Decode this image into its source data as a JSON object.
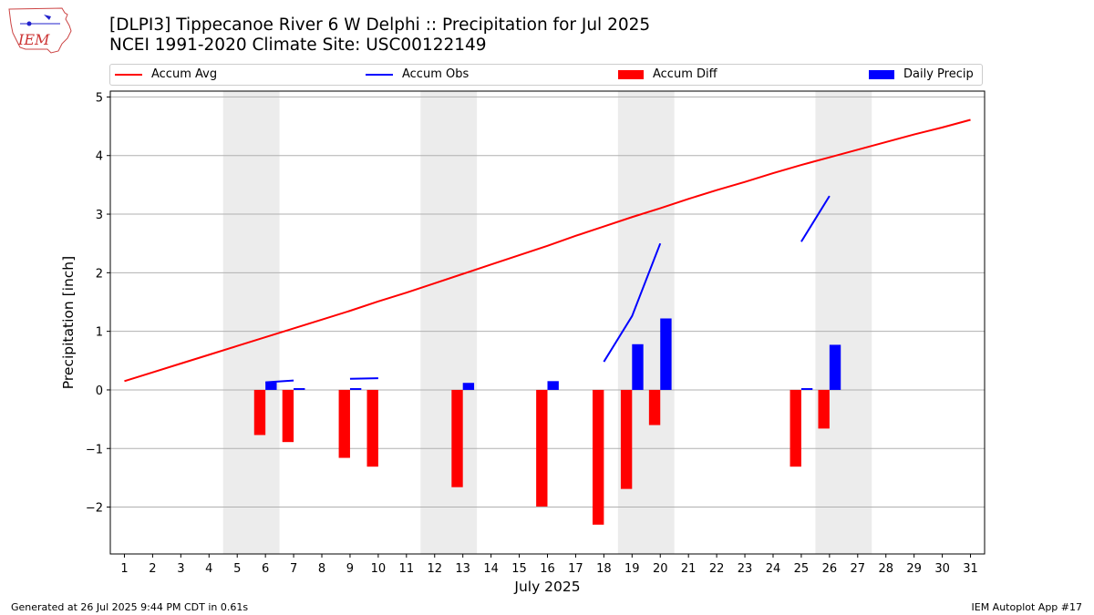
{
  "header": {
    "title_line1": "[DLPI3] Tippecanoe River 6 W Delphi :: Precipitation for Jul 2025",
    "title_line2": "NCEI 1991-2020 Climate Site: USC00122149"
  },
  "logo": {
    "text": "IEM"
  },
  "legend": [
    {
      "label": "Accum Avg",
      "kind": "line",
      "color": "#ff0000"
    },
    {
      "label": "Accum Obs",
      "kind": "line",
      "color": "#0000ff"
    },
    {
      "label": "Accum Diff",
      "kind": "box",
      "color": "#ff0000"
    },
    {
      "label": "Daily Precip",
      "kind": "box",
      "color": "#0000ff"
    }
  ],
  "footer": {
    "left": "Generated at 26 Jul 2025 9:44 PM CDT in 0.61s",
    "right": "IEM Autoplot App #17"
  },
  "chart_data": {
    "type": "bar",
    "title": "[DLPI3] Tippecanoe River 6 W Delphi :: Precipitation for Jul 2025",
    "xlabel": "July 2025",
    "ylabel": "Precipitation [inch]",
    "xlim": [
      0.5,
      31.5
    ],
    "ylim": [
      -2.8,
      5.1
    ],
    "x_ticks": [
      1,
      2,
      3,
      4,
      5,
      6,
      7,
      8,
      9,
      10,
      11,
      12,
      13,
      14,
      15,
      16,
      17,
      18,
      19,
      20,
      21,
      22,
      23,
      24,
      25,
      26,
      27,
      28,
      29,
      30,
      31
    ],
    "y_ticks": [
      -2,
      -1,
      0,
      1,
      2,
      3,
      4,
      5
    ],
    "grid": "horizontal",
    "legend_placement": "top",
    "weekend_shading": [
      [
        4.5,
        6.5
      ],
      [
        11.5,
        13.5
      ],
      [
        18.5,
        20.5
      ],
      [
        25.5,
        27.5
      ]
    ],
    "series": [
      {
        "name": "Accum Avg",
        "kind": "line",
        "color": "#ff0000",
        "x": [
          1,
          2,
          3,
          4,
          5,
          6,
          7,
          8,
          9,
          10,
          11,
          12,
          13,
          14,
          15,
          16,
          17,
          18,
          19,
          20,
          21,
          22,
          23,
          24,
          25,
          26,
          27,
          28,
          29,
          30,
          31
        ],
        "values": [
          0.15,
          0.3,
          0.45,
          0.6,
          0.75,
          0.9,
          1.05,
          1.2,
          1.35,
          1.51,
          1.66,
          1.82,
          1.98,
          2.14,
          2.3,
          2.46,
          2.63,
          2.79,
          2.95,
          3.1,
          3.26,
          3.41,
          3.55,
          3.7,
          3.84,
          3.97,
          4.1,
          4.23,
          4.36,
          4.48,
          4.61
        ]
      },
      {
        "name": "Accum Obs",
        "kind": "line",
        "color": "#0000ff",
        "segments": [
          {
            "x": [
              6,
              7
            ],
            "values": [
              0.13,
              0.16
            ]
          },
          {
            "x": [
              9,
              10
            ],
            "values": [
              0.19,
              0.2
            ]
          },
          {
            "x": [
              18,
              19,
              20
            ],
            "values": [
              0.48,
              1.26,
              2.5
            ]
          },
          {
            "x": [
              25,
              26
            ],
            "values": [
              2.53,
              3.31
            ]
          }
        ]
      },
      {
        "name": "Accum Diff",
        "kind": "bar",
        "color": "#ff0000",
        "x": [
          6,
          7,
          9,
          10,
          13,
          16,
          18,
          19,
          20,
          25,
          26
        ],
        "values": [
          -0.77,
          -0.89,
          -1.16,
          -1.31,
          -1.66,
          -1.99,
          -2.3,
          -1.69,
          -0.6,
          -1.31,
          -0.66
        ]
      },
      {
        "name": "Daily Precip",
        "kind": "bar",
        "color": "#0000ff",
        "x": [
          6,
          7,
          9,
          13,
          16,
          19,
          20,
          25,
          26
        ],
        "values": [
          0.13,
          0.03,
          0.03,
          0.12,
          0.15,
          0.78,
          1.22,
          0.03,
          0.77
        ]
      }
    ]
  }
}
